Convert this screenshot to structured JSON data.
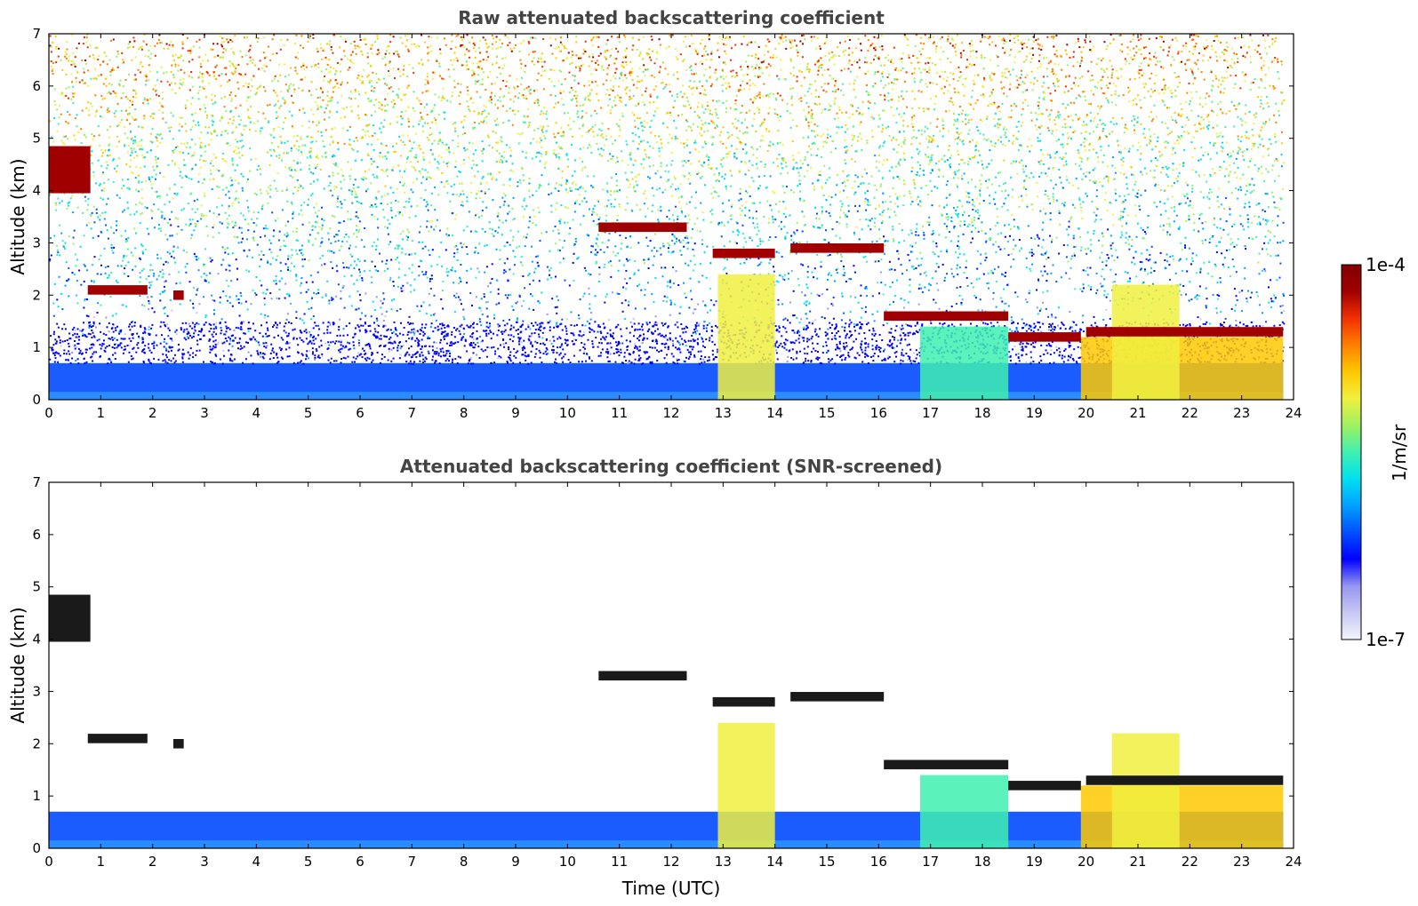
{
  "colormap": [
    "#f4f4fc",
    "#c8c8f4",
    "#9696f0",
    "#0000ff",
    "#0050ff",
    "#00a0ff",
    "#00e0f0",
    "#40f0b0",
    "#a0f060",
    "#f0f040",
    "#ffc800",
    "#ff8000",
    "#f03000",
    "#a00000",
    "#800000"
  ],
  "colorbar": {
    "label": "1/m/sr",
    "max_label": "1e-4",
    "min_label": "1e-7"
  },
  "chart_data": [
    {
      "type": "heatmap",
      "title": "Raw attenuated backscattering coefficient",
      "xlabel": "",
      "ylabel": "Altitude (km)",
      "xlim": [
        0,
        24
      ],
      "ylim": [
        0,
        7
      ],
      "xticks": [
        "0",
        "1",
        "2",
        "3",
        "4",
        "5",
        "6",
        "7",
        "8",
        "9",
        "10",
        "11",
        "12",
        "13",
        "14",
        "15",
        "16",
        "17",
        "18",
        "19",
        "20",
        "21",
        "22",
        "23",
        "24"
      ],
      "yticks": [
        "0",
        "1",
        "2",
        "3",
        "4",
        "5",
        "6",
        "7"
      ],
      "color_scale": "log",
      "clim": [
        "1e-7",
        "1e-4"
      ],
      "features": {
        "boundary_layer_top_km": 0.7,
        "cloud_layers": [
          {
            "t_start": 0.0,
            "t_end": 0.8,
            "alt_km": 4.4
          },
          {
            "t_start": 0.75,
            "t_end": 1.9,
            "alt_km": 2.1
          },
          {
            "t_start": 2.4,
            "t_end": 2.6,
            "alt_km": 2.0
          },
          {
            "t_start": 10.6,
            "t_end": 12.3,
            "alt_km": 3.3
          },
          {
            "t_start": 12.8,
            "t_end": 14.0,
            "alt_km": 2.8
          },
          {
            "t_start": 14.3,
            "t_end": 16.1,
            "alt_km": 2.9
          },
          {
            "t_start": 16.1,
            "t_end": 18.5,
            "alt_km": 1.6
          },
          {
            "t_start": 18.5,
            "t_end": 19.9,
            "alt_km": 1.2
          },
          {
            "t_start": 20.0,
            "t_end": 23.8,
            "alt_km": 1.3
          }
        ]
      }
    },
    {
      "type": "heatmap",
      "title": "Attenuated backscattering coefficient (SNR-screened)",
      "xlabel": "Time (UTC)",
      "ylabel": "Altitude (km)",
      "xlim": [
        0,
        24
      ],
      "ylim": [
        0,
        7
      ],
      "xticks": [
        "0",
        "1",
        "2",
        "3",
        "4",
        "5",
        "6",
        "7",
        "8",
        "9",
        "10",
        "11",
        "12",
        "13",
        "14",
        "15",
        "16",
        "17",
        "18",
        "19",
        "20",
        "21",
        "22",
        "23",
        "24"
      ],
      "yticks": [
        "0",
        "1",
        "2",
        "3",
        "4",
        "5",
        "6",
        "7"
      ],
      "color_scale": "log",
      "clim": [
        "1e-7",
        "1e-4"
      ]
    }
  ]
}
